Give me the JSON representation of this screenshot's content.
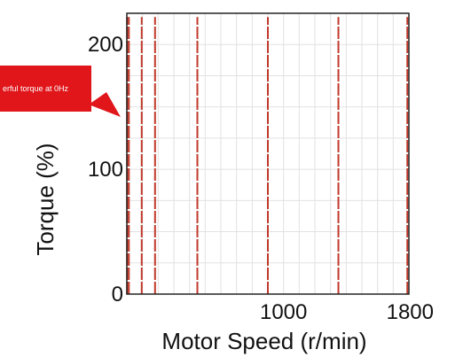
{
  "chart_data": {
    "type": "line",
    "title": "",
    "xlabel": "Motor Speed (r/min)",
    "ylabel": "Torque (%)",
    "xlim": [
      0,
      1800
    ],
    "ylim": [
      0,
      225
    ],
    "x_tick_labels": [
      {
        "value": 1000,
        "label": "1000"
      },
      {
        "value": 1800,
        "label": "1800"
      }
    ],
    "y_tick_labels": [
      {
        "value": 0,
        "label": "0"
      },
      {
        "value": 100,
        "label": "100"
      },
      {
        "value": 200,
        "label": "200"
      }
    ],
    "grid": true,
    "grid_x_step": 100,
    "grid_y_step": 25,
    "series": [
      {
        "x": [
          2,
          2
        ],
        "y": [
          0,
          222
        ]
      },
      {
        "x": [
          13,
          13
        ],
        "y": [
          0,
          222
        ]
      },
      {
        "x": [
          95,
          95
        ],
        "y": [
          0,
          222
        ]
      },
      {
        "x": [
          180,
          180
        ],
        "y": [
          0,
          222
        ]
      },
      {
        "x": [
          450,
          450
        ],
        "y": [
          0,
          222
        ]
      },
      {
        "x": [
          900,
          900
        ],
        "y": [
          0,
          222
        ]
      },
      {
        "x": [
          1350,
          1350
        ],
        "y": [
          0,
          222
        ]
      },
      {
        "x": [
          1790,
          1790
        ],
        "y": [
          0,
          222
        ]
      }
    ],
    "annotations": [
      {
        "text": "erful torque at 0Hz",
        "x": 0,
        "y": 170
      }
    ],
    "colors": {
      "line": "#c0392b",
      "callout": "#e0161b",
      "grid": "#e2e2e2",
      "axis": "#222222"
    }
  }
}
